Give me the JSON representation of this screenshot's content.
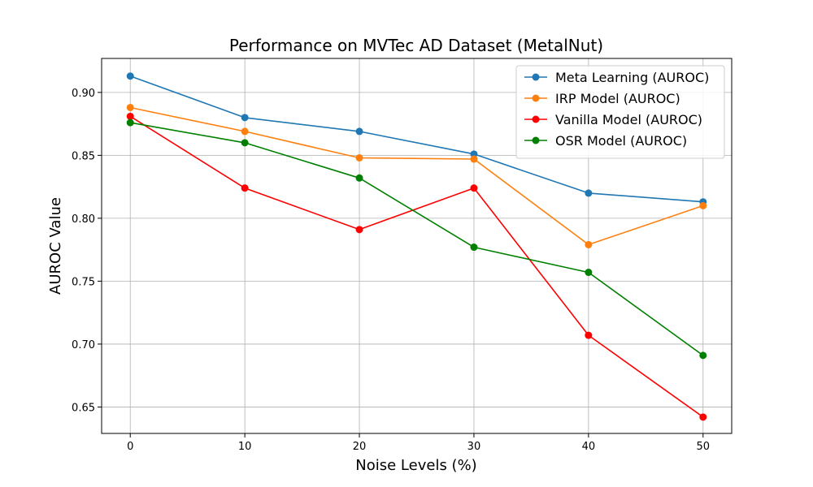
{
  "chart_data": {
    "type": "line",
    "title": "Performance on MVTec AD Dataset (MetalNut)",
    "xlabel": "Noise Levels (%)",
    "ylabel": "AUROC Value",
    "x": [
      0,
      10,
      20,
      30,
      40,
      50
    ],
    "xticks": [
      "0",
      "10",
      "20",
      "30",
      "40",
      "50"
    ],
    "yticks": [
      "0.65",
      "0.70",
      "0.75",
      "0.80",
      "0.85",
      "0.90"
    ],
    "xlim": [
      -2.5,
      52.5
    ],
    "ylim": [
      0.629,
      0.927
    ],
    "grid": true,
    "legend_position": "top-right",
    "series": [
      {
        "name": "Meta Learning (AUROC)",
        "color": "#1f77b4",
        "values": [
          0.913,
          0.88,
          0.869,
          0.851,
          0.82,
          0.813
        ]
      },
      {
        "name": "IRP Model (AUROC)",
        "color": "#ff7f0e",
        "values": [
          0.888,
          0.869,
          0.848,
          0.847,
          0.779,
          0.81
        ]
      },
      {
        "name": "Vanilla Model (AUROC)",
        "color": "#ff0000",
        "values": [
          0.881,
          0.824,
          0.791,
          0.824,
          0.707,
          0.642
        ]
      },
      {
        "name": "OSR Model (AUROC)",
        "color": "#008000",
        "values": [
          0.876,
          0.86,
          0.832,
          0.777,
          0.757,
          0.691
        ]
      }
    ]
  }
}
